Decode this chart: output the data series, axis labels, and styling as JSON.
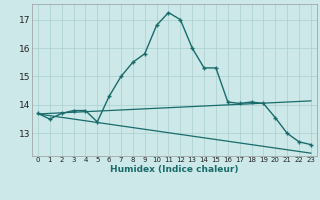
{
  "xlabel": "Humidex (Indice chaleur)",
  "background_color": "#cce8e8",
  "grid_color": "#aacfcf",
  "line_color": "#1a6b6b",
  "x_values": [
    0,
    1,
    2,
    3,
    4,
    5,
    6,
    7,
    8,
    9,
    10,
    11,
    12,
    13,
    14,
    15,
    16,
    17,
    18,
    19,
    20,
    21,
    22,
    23
  ],
  "main_curve_y": [
    13.7,
    13.5,
    13.7,
    13.8,
    13.8,
    13.4,
    14.3,
    15.0,
    15.5,
    15.8,
    16.8,
    17.25,
    17.0,
    16.0,
    15.3,
    15.3,
    14.1,
    14.05,
    14.1,
    14.05,
    13.55,
    13.0,
    12.7,
    12.6
  ],
  "rising_line_y": [
    13.68,
    13.7,
    13.72,
    13.74,
    13.76,
    13.78,
    13.8,
    13.82,
    13.84,
    13.86,
    13.88,
    13.9,
    13.92,
    13.94,
    13.96,
    13.98,
    14.0,
    14.02,
    14.04,
    14.06,
    14.08,
    14.1,
    14.12,
    14.14
  ],
  "falling_line_y": [
    13.68,
    13.62,
    13.56,
    13.5,
    13.44,
    13.38,
    13.32,
    13.26,
    13.2,
    13.14,
    13.08,
    13.02,
    12.96,
    12.9,
    12.84,
    12.78,
    12.72,
    12.66,
    12.6,
    12.54,
    12.48,
    12.42,
    12.36,
    12.3
  ],
  "ylim": [
    12.2,
    17.55
  ],
  "yticks": [
    13,
    14,
    15,
    16,
    17
  ],
  "xticks": [
    0,
    1,
    2,
    3,
    4,
    5,
    6,
    7,
    8,
    9,
    10,
    11,
    12,
    13,
    14,
    15,
    16,
    17,
    18,
    19,
    20,
    21,
    22,
    23
  ]
}
